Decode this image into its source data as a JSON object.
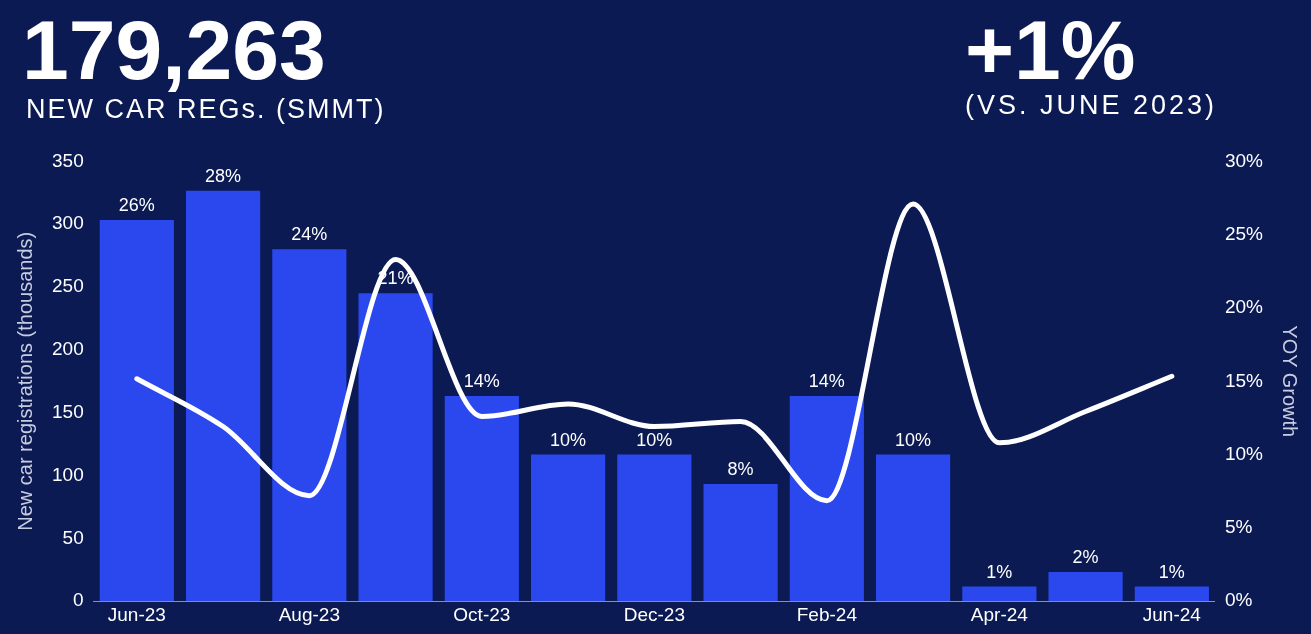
{
  "chart_data": {
    "type": "bar",
    "title": "179,263",
    "subtitle": "NEW CAR REGs. (SMMT)",
    "annotations": [
      "+1%",
      "(VS. JUNE 2023)"
    ],
    "categories": [
      "Jun-23",
      null,
      "Aug-23",
      null,
      "Oct-23",
      null,
      "Dec-23",
      null,
      "Feb-24",
      null,
      "Apr-24",
      null,
      "Jun-24"
    ],
    "ylabel": "New car registrations (thousands)",
    "y2label": "YOY Growth",
    "ylim": [
      0,
      350
    ],
    "yticks": [
      0,
      50,
      100,
      150,
      200,
      250,
      300,
      350
    ],
    "y2lim": [
      0,
      30
    ],
    "y2ticks": [
      {
        "value": 0,
        "label": "0%"
      },
      {
        "value": 5,
        "label": "5%"
      },
      {
        "value": 10,
        "label": "10%"
      },
      {
        "value": 15,
        "label": "15%"
      },
      {
        "value": 20,
        "label": "20%"
      },
      {
        "value": 25,
        "label": "25%"
      },
      {
        "value": 30,
        "label": "30%"
      }
    ],
    "series": [
      {
        "axis": "y2",
        "color": "#2b48ef",
        "values": [
          26,
          28,
          24,
          21,
          14,
          10,
          10,
          8,
          14,
          10,
          1,
          2,
          1
        ],
        "value_labels": [
          "26%",
          "28%",
          "24%",
          "21%",
          "14%",
          "10%",
          "10%",
          "8%",
          "14%",
          "10%",
          "1%",
          "2%",
          "1%"
        ]
      },
      {
        "type": "line",
        "color": "#ffffff",
        "values": [
          177,
          139,
          84,
          272,
          147,
          157,
          139,
          143,
          80,
          316,
          126,
          151,
          179
        ]
      }
    ],
    "marker": "none",
    "grid": false,
    "legend": false
  }
}
